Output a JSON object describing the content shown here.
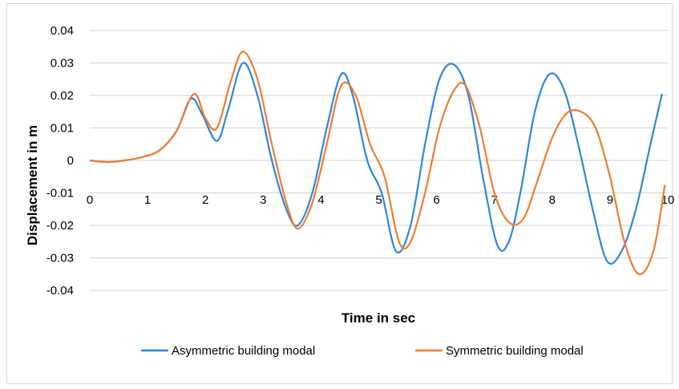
{
  "chart_data": {
    "type": "line",
    "xlabel": "Time in sec",
    "ylabel": "Displacement in m",
    "xlim": [
      0,
      10
    ],
    "ylim": [
      -0.04,
      0.04
    ],
    "x_ticks": [
      "0",
      "1",
      "2",
      "3",
      "4",
      "5",
      "6",
      "7",
      "8",
      "9",
      "10"
    ],
    "y_ticks": [
      "0.04",
      "0.03",
      "0.02",
      "0.01",
      "0",
      "-0.01",
      "-0.02",
      "-0.03",
      "-0.04"
    ],
    "grid": "horizontal",
    "legend": "bottom",
    "series": [
      {
        "name": "Asymmetric building modal",
        "color": "#2e86d9",
        "x": [
          0,
          0.3,
          0.6,
          0.9,
          1.2,
          1.5,
          1.75,
          1.95,
          2.2,
          2.4,
          2.65,
          2.9,
          3.15,
          3.4,
          3.6,
          3.85,
          4.1,
          4.35,
          4.55,
          4.8,
          5.05,
          5.3,
          5.55,
          5.8,
          6.05,
          6.3,
          6.55,
          6.8,
          7.05,
          7.25,
          7.45,
          7.7,
          7.95,
          8.2,
          8.45,
          8.7,
          8.95,
          9.2,
          9.45,
          9.7,
          9.9
        ],
        "y": [
          0,
          -0.0005,
          0,
          0.001,
          0.003,
          0.009,
          0.019,
          0.014,
          0.006,
          0.016,
          0.03,
          0.02,
          0,
          -0.015,
          -0.02,
          -0.01,
          0.01,
          0.0265,
          0.02,
          0,
          -0.01,
          -0.028,
          -0.02,
          0.005,
          0.025,
          0.0295,
          0.02,
          -0.005,
          -0.026,
          -0.025,
          -0.01,
          0.015,
          0.0265,
          0.022,
          0.005,
          -0.015,
          -0.031,
          -0.028,
          -0.015,
          0.005,
          0.0205
        ]
      },
      {
        "name": "Symmetric building modal",
        "color": "#ee7d31",
        "x": [
          0,
          0.3,
          0.6,
          0.9,
          1.2,
          1.5,
          1.8,
          2.0,
          2.2,
          2.45,
          2.65,
          2.9,
          3.15,
          3.4,
          3.6,
          3.85,
          4.1,
          4.35,
          4.6,
          4.85,
          5.1,
          5.35,
          5.55,
          5.8,
          6.05,
          6.3,
          6.5,
          6.75,
          7.0,
          7.25,
          7.5,
          7.75,
          8.0,
          8.25,
          8.5,
          8.75,
          9.0,
          9.25,
          9.5,
          9.75,
          9.95
        ],
        "y": [
          0,
          -0.0005,
          0,
          0.001,
          0.003,
          0.009,
          0.0205,
          0.013,
          0.01,
          0.025,
          0.0335,
          0.025,
          0.005,
          -0.013,
          -0.021,
          -0.013,
          0.005,
          0.023,
          0.02,
          0.005,
          -0.005,
          -0.025,
          -0.025,
          -0.01,
          0.01,
          0.0215,
          0.023,
          0.01,
          -0.01,
          -0.019,
          -0.018,
          -0.006,
          0.007,
          0.0145,
          0.015,
          0.01,
          -0.005,
          -0.025,
          -0.035,
          -0.028,
          -0.0075
        ]
      }
    ]
  }
}
